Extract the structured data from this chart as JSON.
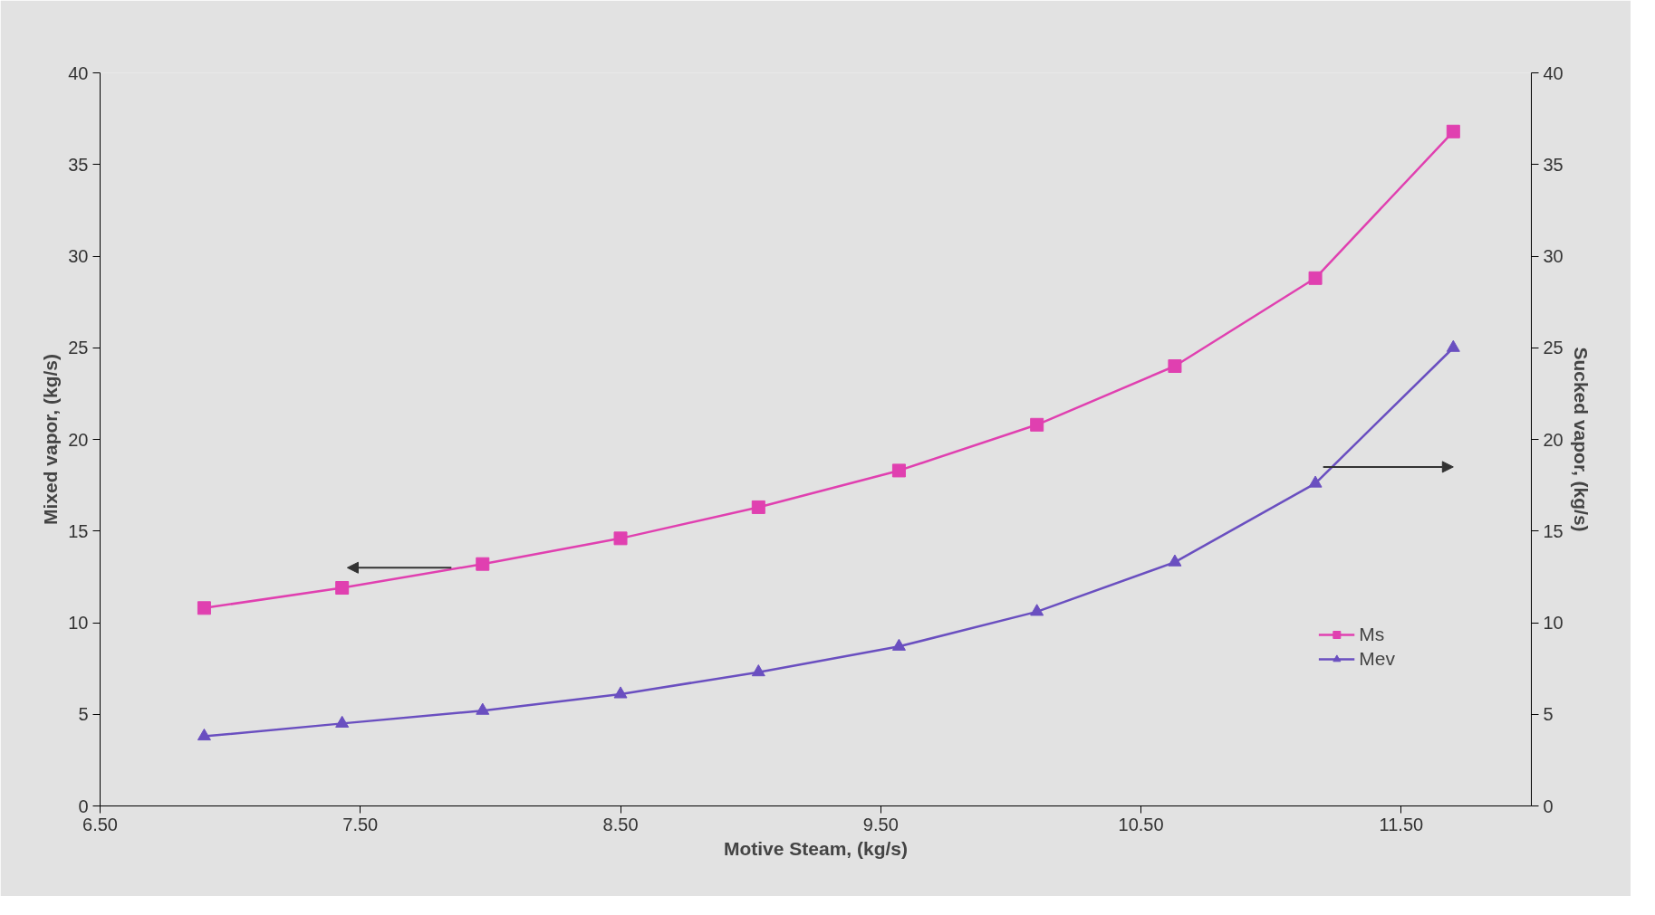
{
  "chart_data": {
    "type": "line",
    "xlabel": "Motive Steam, (kg/s)",
    "ylabel": "Mixed vapor, (kg/s)",
    "y2label": "Sucked vapor, (kg/s)",
    "x": [
      6.9,
      7.43,
      7.97,
      8.5,
      9.03,
      9.57,
      10.1,
      10.63,
      11.17,
      11.7
    ],
    "series": [
      {
        "name": "Ms",
        "color": "#e040b0",
        "marker": "square",
        "values": [
          10.8,
          11.9,
          13.2,
          14.6,
          16.3,
          18.3,
          20.8,
          24.0,
          28.8,
          36.8
        ]
      },
      {
        "name": "Mev",
        "color": "#6a4fc0",
        "marker": "triangle",
        "axis": "y2",
        "values": [
          3.8,
          4.5,
          5.2,
          6.1,
          7.3,
          8.7,
          10.6,
          13.3,
          17.6,
          25.0
        ]
      }
    ],
    "xlim": [
      6.5,
      12.0
    ],
    "xticks": [
      {
        "value": 6.5,
        "label": "6.50"
      },
      {
        "value": 7.5,
        "label": "7.50"
      },
      {
        "value": 8.5,
        "label": "8.50"
      },
      {
        "value": 9.5,
        "label": "9.50"
      },
      {
        "value": 10.5,
        "label": "10.50"
      },
      {
        "value": 11.5,
        "label": "11.50"
      }
    ],
    "ylim": [
      0,
      40
    ],
    "yticks": [
      0,
      5,
      10,
      15,
      20,
      25,
      30,
      35,
      40
    ],
    "y2lim": [
      0,
      40
    ],
    "y2ticks": [
      0,
      5,
      10,
      15,
      20,
      25,
      30,
      35,
      40
    ],
    "grid": false,
    "legend": "bottom right",
    "line_style": "solid"
  }
}
